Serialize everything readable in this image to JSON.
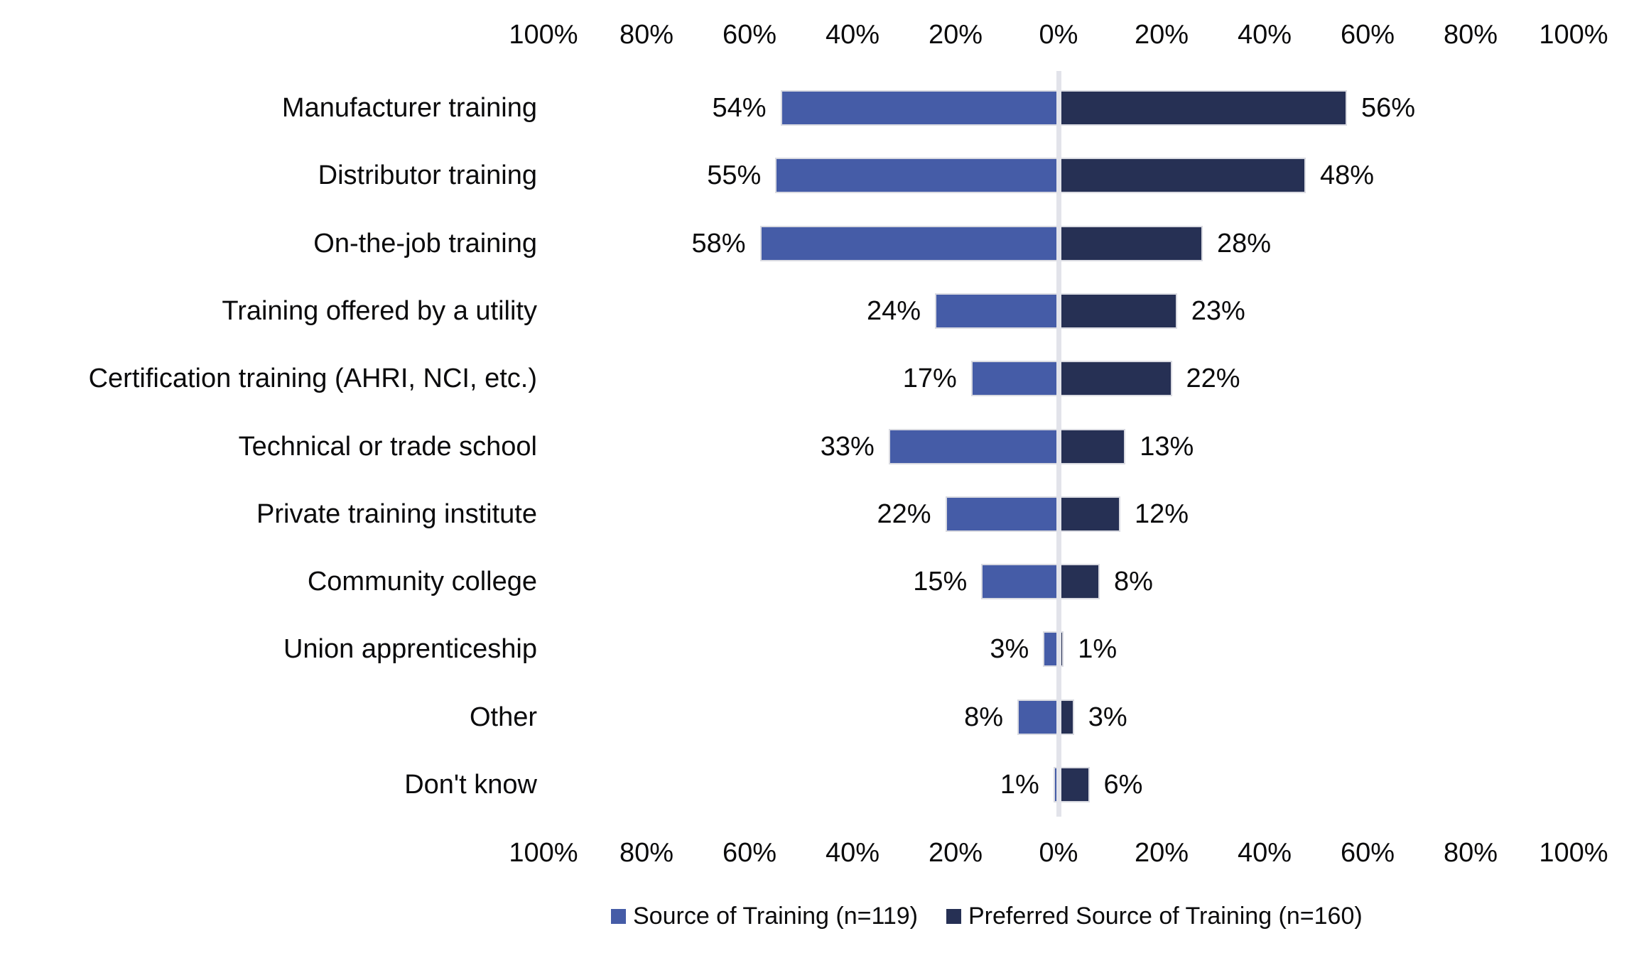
{
  "chart_data": {
    "type": "bar",
    "variant": "diverging-horizontal",
    "title": "",
    "categories": [
      "Manufacturer training",
      "Distributor training",
      "On-the-job training",
      "Training offered by a utility",
      "Certification training (AHRI, NCI, etc.)",
      "Technical or trade school",
      "Private training institute",
      "Community college",
      "Union apprenticeship",
      "Other",
      "Don't know"
    ],
    "series": [
      {
        "name": "Source of Training (n=119)",
        "side": "left",
        "color": "#455CA7",
        "values": [
          54,
          55,
          58,
          24,
          17,
          33,
          22,
          15,
          3,
          8,
          1
        ]
      },
      {
        "name": "Preferred Source of Training (n=160)",
        "side": "right",
        "color": "#263054",
        "values": [
          56,
          48,
          28,
          23,
          22,
          13,
          12,
          8,
          1,
          3,
          6
        ]
      }
    ],
    "value_label_suffix": "%",
    "axis": {
      "tick_values": [
        -100,
        -80,
        -60,
        -40,
        -20,
        0,
        20,
        40,
        60,
        80,
        100
      ],
      "tick_labels": [
        "100%",
        "80%",
        "60%",
        "40%",
        "20%",
        "0%",
        "20%",
        "40%",
        "60%",
        "80%",
        "100%"
      ],
      "xlim": [
        -100,
        100
      ],
      "top_axis": true,
      "bottom_axis": true
    },
    "grid": "center-zero-line-only",
    "legend_position": "bottom",
    "colors": {
      "center_line": "#E2E3EA",
      "bar_border": "#D9DAE1",
      "text": "#0B0B0C",
      "background": "#FFFFFF"
    }
  }
}
